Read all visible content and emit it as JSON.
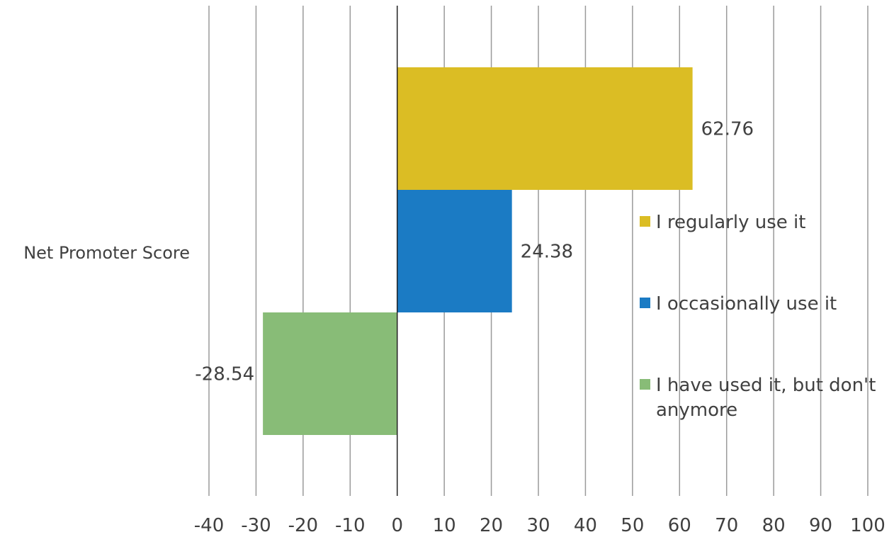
{
  "chart_data": {
    "type": "bar",
    "orientation": "horizontal",
    "categories": [
      "Net Promoter Score"
    ],
    "series": [
      {
        "name": "I regularly use it",
        "values": [
          62.76
        ],
        "color": "#dbbd24"
      },
      {
        "name": "I occasionally use it",
        "values": [
          24.38
        ],
        "color": "#1b7bc4"
      },
      {
        "name": "I have used it, but don't anymore",
        "values": [
          -28.54
        ],
        "color": "#88bc77"
      }
    ],
    "data_labels": [
      "62.76",
      "24.38",
      "-28.54"
    ],
    "xlim": [
      -40,
      100
    ],
    "xticks": [
      -40,
      -30,
      -20,
      -10,
      0,
      10,
      20,
      30,
      40,
      50,
      60,
      70,
      80,
      90,
      100
    ],
    "grid": true,
    "legend_position": "right",
    "title": "",
    "xlabel": "",
    "ylabel": ""
  }
}
